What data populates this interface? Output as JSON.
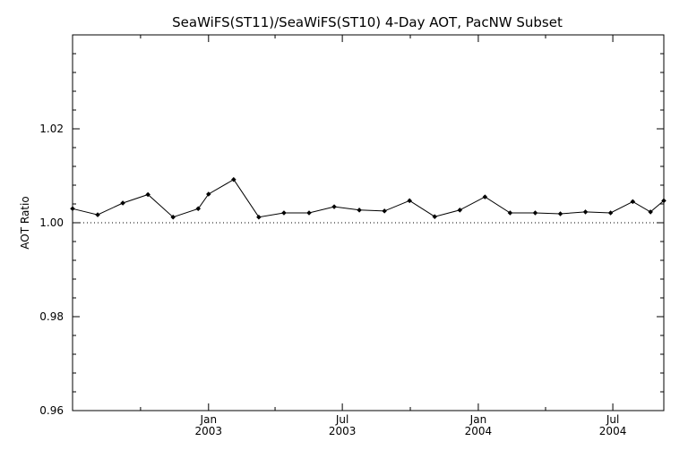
{
  "chart_data": {
    "type": "line",
    "title": "SeaWiFS(ST11)/SeaWiFS(ST10) 4-Day AOT, PacNW Subset",
    "ylabel": "AOT Ratio",
    "xlabel": "",
    "ylim": [
      0.96,
      1.04
    ],
    "yticks": [
      0.96,
      0.98,
      1.0,
      1.02
    ],
    "ytick_labels": [
      "0.96",
      "0.98",
      "1.00",
      "1.02"
    ],
    "xlim": [
      "2002-07-01",
      "2004-09-08"
    ],
    "xticks": [
      {
        "date": "2003-01-01",
        "line1": "Jan",
        "line2": "2003"
      },
      {
        "date": "2003-07-01",
        "line1": "Jul",
        "line2": "2003"
      },
      {
        "date": "2004-01-01",
        "line1": "Jan",
        "line2": "2004"
      },
      {
        "date": "2004-07-01",
        "line1": "Jul",
        "line2": "2004"
      }
    ],
    "reference_line": {
      "y": 1.0,
      "style": "dotted"
    },
    "grid": false,
    "series": [
      {
        "points": [
          {
            "x": "2002-07-01",
            "y": 1.003
          },
          {
            "x": "2002-08-04",
            "y": 1.0017
          },
          {
            "x": "2002-09-07",
            "y": 1.0042
          },
          {
            "x": "2002-10-11",
            "y": 1.006
          },
          {
            "x": "2002-11-14",
            "y": 1.0012
          },
          {
            "x": "2002-12-18",
            "y": 1.003
          },
          {
            "x": "2003-01-01",
            "y": 1.0061
          },
          {
            "x": "2003-02-04",
            "y": 1.0092
          },
          {
            "x": "2003-03-10",
            "y": 1.0012
          },
          {
            "x": "2003-04-13",
            "y": 1.0021
          },
          {
            "x": "2003-05-17",
            "y": 1.0021
          },
          {
            "x": "2003-06-20",
            "y": 1.0034
          },
          {
            "x": "2003-07-24",
            "y": 1.0027
          },
          {
            "x": "2003-08-27",
            "y": 1.0025
          },
          {
            "x": "2003-09-30",
            "y": 1.0047
          },
          {
            "x": "2003-11-03",
            "y": 1.0013
          },
          {
            "x": "2003-12-07",
            "y": 1.0027
          },
          {
            "x": "2004-01-10",
            "y": 1.0055
          },
          {
            "x": "2004-02-13",
            "y": 1.0021
          },
          {
            "x": "2004-03-18",
            "y": 1.0021
          },
          {
            "x": "2004-04-21",
            "y": 1.0019
          },
          {
            "x": "2004-05-25",
            "y": 1.0023
          },
          {
            "x": "2004-06-28",
            "y": 1.0021
          },
          {
            "x": "2004-07-28",
            "y": 1.0045
          },
          {
            "x": "2004-08-21",
            "y": 1.0023
          },
          {
            "x": "2004-09-08",
            "y": 1.0047
          }
        ],
        "color": "#000000",
        "marker": "diamond"
      }
    ]
  }
}
